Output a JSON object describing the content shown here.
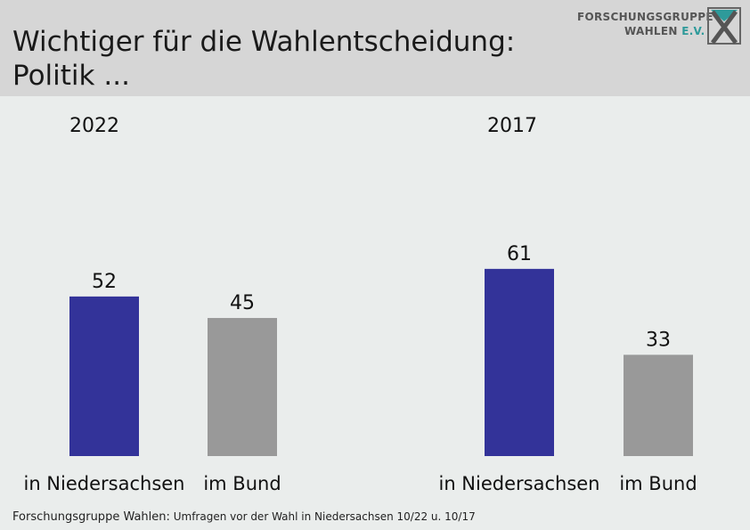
{
  "header": {
    "title_line1": "Wichtiger für die Wahlentscheidung:",
    "title_line2": "Politik ..."
  },
  "logo": {
    "line1": "FORSCHUNGSGRUPPE",
    "line2_a": "WAHLEN ",
    "line2_b": "E.V.",
    "icon": "fgw-x-logo-icon"
  },
  "chart_data": {
    "type": "bar",
    "groups": [
      {
        "label": "2022",
        "categories": [
          "in Niedersachsen",
          "im Bund"
        ],
        "values": [
          52,
          45
        ]
      },
      {
        "label": "2017",
        "categories": [
          "in Niedersachsen",
          "im Bund"
        ],
        "values": [
          61,
          33
        ]
      }
    ],
    "ylim": [
      0,
      100
    ],
    "grid": false,
    "colors": {
      "in Niedersachsen": "#333399",
      "im Bund": "#999999"
    }
  },
  "footer": {
    "source": "Forschungsgruppe Wahlen:",
    "note": " Umfragen vor der Wahl in Niedersachsen 10/22 u. 10/17"
  }
}
